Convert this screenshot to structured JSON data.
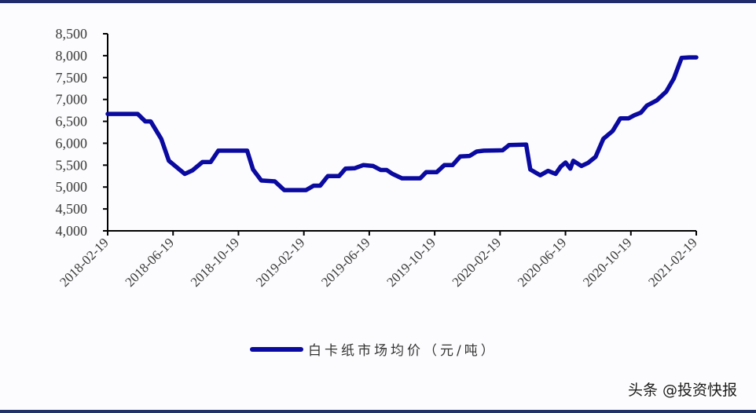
{
  "colors": {
    "line": "#0a0aa0",
    "axis": "#000000",
    "frame": "#1f2b6b"
  },
  "legend": {
    "label": "白卡纸市场均价（元/吨）"
  },
  "watermark": {
    "text": "头条 @投资快报"
  },
  "chart_data": {
    "type": "line",
    "title": "",
    "xlabel": "",
    "ylabel": "",
    "ylim": [
      4000,
      8500
    ],
    "yticks": [
      4000,
      4500,
      5000,
      5500,
      6000,
      6500,
      7000,
      7500,
      8000,
      8500
    ],
    "ytick_labels": [
      "4,000",
      "4,500",
      "5,000",
      "5,500",
      "6,000",
      "6,500",
      "7,000",
      "7,500",
      "8,000",
      "8,500"
    ],
    "xtick_labels": [
      "2018-02-19",
      "2018-06-19",
      "2018-10-19",
      "2019-02-19",
      "2019-06-19",
      "2019-10-19",
      "2020-02-19",
      "2020-06-19",
      "2020-10-19",
      "2021-02-19"
    ],
    "grid": false,
    "legend_position": "bottom",
    "series": [
      {
        "name": "白卡纸市场均价（元/吨）",
        "x_frac": [
          0,
          0.051,
          0.064,
          0.073,
          0.091,
          0.104,
          0.131,
          0.144,
          0.161,
          0.175,
          0.188,
          0.237,
          0.247,
          0.261,
          0.284,
          0.3,
          0.337,
          0.35,
          0.361,
          0.374,
          0.393,
          0.404,
          0.42,
          0.434,
          0.451,
          0.464,
          0.474,
          0.484,
          0.5,
          0.531,
          0.541,
          0.559,
          0.572,
          0.586,
          0.599,
          0.615,
          0.627,
          0.639,
          0.671,
          0.682,
          0.711,
          0.718,
          0.735,
          0.748,
          0.761,
          0.77,
          0.778,
          0.786,
          0.791,
          0.805,
          0.816,
          0.829,
          0.842,
          0.858,
          0.871,
          0.885,
          0.895,
          0.906,
          0.916,
          0.933,
          0.949,
          0.962,
          0.975,
          0.988,
          1.0
        ],
        "values": [
          6670,
          6670,
          6500,
          6500,
          6100,
          5600,
          5300,
          5380,
          5570,
          5570,
          5830,
          5830,
          5400,
          5150,
          5130,
          4930,
          4930,
          5030,
          5030,
          5250,
          5250,
          5420,
          5430,
          5500,
          5480,
          5390,
          5390,
          5300,
          5200,
          5200,
          5340,
          5340,
          5500,
          5500,
          5700,
          5710,
          5810,
          5830,
          5840,
          5960,
          5970,
          5400,
          5270,
          5370,
          5300,
          5470,
          5560,
          5420,
          5600,
          5480,
          5550,
          5690,
          6100,
          6280,
          6570,
          6570,
          6640,
          6700,
          6860,
          6980,
          7180,
          7480,
          7950,
          7960,
          7960
        ]
      }
    ]
  }
}
